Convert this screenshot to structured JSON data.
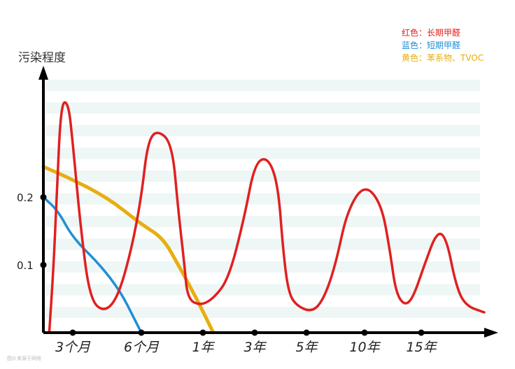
{
  "chart_data": {
    "type": "line",
    "ylabel": "污染程度",
    "y_ticks": [
      {
        "label": "0.1",
        "value": 0.1
      },
      {
        "label": "0.2",
        "value": 0.2
      }
    ],
    "ylim": [
      0,
      0.4
    ],
    "x_ticks": [
      {
        "label": "3个月",
        "value": 1
      },
      {
        "label": "6个月",
        "value": 2
      },
      {
        "label": "1年",
        "value": 3
      },
      {
        "label": "3年",
        "value": 4
      },
      {
        "label": "5年",
        "value": 5
      },
      {
        "label": "10年",
        "value": 6
      },
      {
        "label": "15年",
        "value": 7
      }
    ],
    "legend": [
      {
        "label": "红色：长期甲醛",
        "color": "#e02020"
      },
      {
        "label": "蓝色：短期甲醛",
        "color": "#1f8fd6"
      },
      {
        "label": "黄色：苯系物、TVOC",
        "color": "#e8ad10"
      }
    ],
    "legend_position": "top-right",
    "background_bands": true,
    "series": [
      {
        "color": "#e02020",
        "points": [
          [
            0.2,
            0
          ],
          [
            0.35,
            0.1
          ],
          [
            0.45,
            0.2
          ],
          [
            0.6,
            0.34
          ],
          [
            0.85,
            0.34
          ],
          [
            1.0,
            0.28
          ],
          [
            1.12,
            0.15
          ],
          [
            1.25,
            0.05
          ],
          [
            1.45,
            0.03
          ],
          [
            1.65,
            0.05
          ],
          [
            1.85,
            0.12
          ],
          [
            2.0,
            0.2
          ],
          [
            2.1,
            0.28
          ],
          [
            2.25,
            0.3
          ],
          [
            2.5,
            0.28
          ],
          [
            2.6,
            0.18
          ],
          [
            2.7,
            0.1
          ],
          [
            2.75,
            0.05
          ],
          [
            2.95,
            0.04
          ],
          [
            3.2,
            0.05
          ],
          [
            3.5,
            0.08
          ],
          [
            3.8,
            0.17
          ],
          [
            4.0,
            0.25
          ],
          [
            4.25,
            0.26
          ],
          [
            4.45,
            0.22
          ],
          [
            4.55,
            0.12
          ],
          [
            4.65,
            0.06
          ],
          [
            4.8,
            0.04
          ],
          [
            5.1,
            0.03
          ],
          [
            5.3,
            0.05
          ],
          [
            5.5,
            0.1
          ],
          [
            5.7,
            0.18
          ],
          [
            6.0,
            0.22
          ],
          [
            6.3,
            0.19
          ],
          [
            6.45,
            0.12
          ],
          [
            6.55,
            0.06
          ],
          [
            6.7,
            0.04
          ],
          [
            6.85,
            0.05
          ],
          [
            7.05,
            0.1
          ],
          [
            7.25,
            0.15
          ],
          [
            7.4,
            0.14
          ],
          [
            7.55,
            0.07
          ],
          [
            7.7,
            0.04
          ],
          [
            8.0,
            0.03
          ]
        ]
      },
      {
        "color": "#1f8fd6",
        "points": [
          [
            0,
            0.2
          ],
          [
            0.5,
            0.18
          ],
          [
            1.0,
            0.14
          ],
          [
            1.4,
            0.1
          ],
          [
            1.7,
            0.06
          ],
          [
            1.9,
            0.02
          ],
          [
            2.0,
            0
          ]
        ]
      },
      {
        "color": "#e8ad10",
        "points": [
          [
            0,
            0.245
          ],
          [
            0.8,
            0.23
          ],
          [
            1.5,
            0.2
          ],
          [
            2.0,
            0.16
          ],
          [
            2.35,
            0.14
          ],
          [
            2.6,
            0.1
          ],
          [
            2.9,
            0.05
          ],
          [
            3.2,
            0.0
          ]
        ]
      }
    ]
  },
  "watermark": "图片来源于网络"
}
